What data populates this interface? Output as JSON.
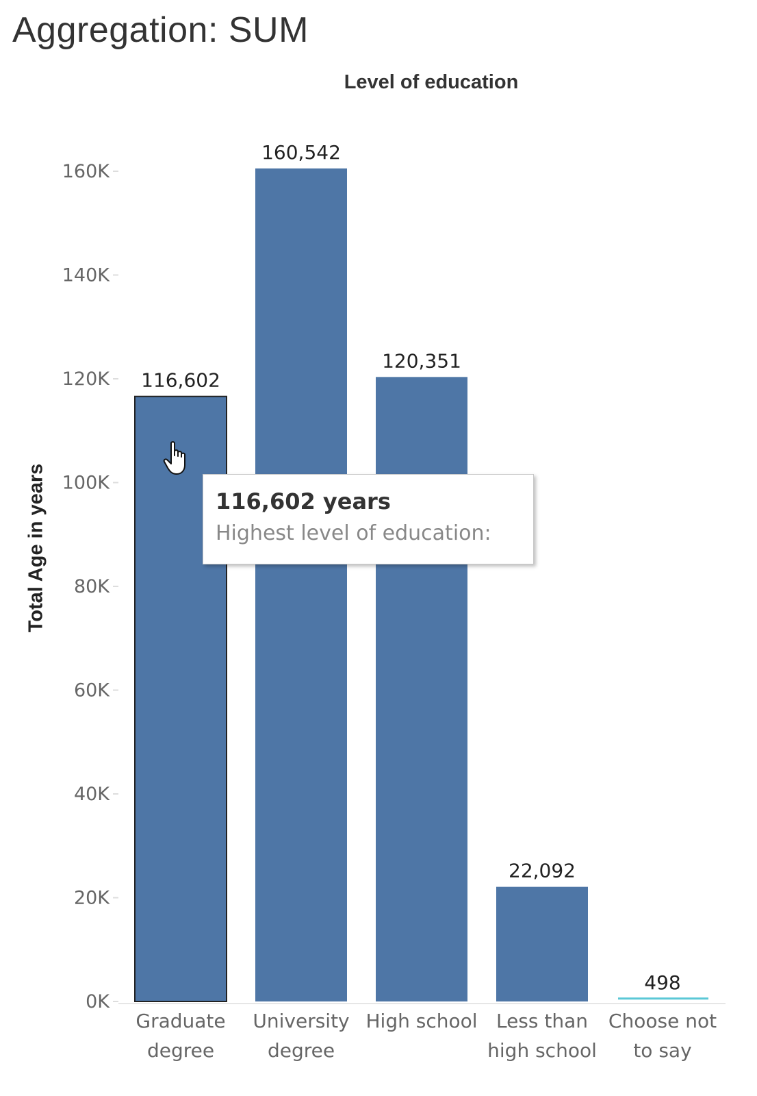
{
  "title": "Aggregation: SUM",
  "column_header": "Level of education",
  "tooltip": {
    "value": "116,602 years",
    "description": "Highest level of education:"
  },
  "colors": {
    "bar": "#4e76a6",
    "bar_selected_border": "#222222",
    "last_bar": "#5bc8d6"
  },
  "cursor_icon": "hand-pointer-icon",
  "chart_data": {
    "type": "bar",
    "title": "",
    "xlabel": "",
    "ylabel": "Total Age in years",
    "categories": [
      [
        "Graduate",
        "degree"
      ],
      [
        "University",
        "degree"
      ],
      [
        "High school"
      ],
      [
        "Less than",
        "high school"
      ],
      [
        "Choose not",
        "to say"
      ]
    ],
    "values": [
      116602,
      160542,
      120351,
      22092,
      498
    ],
    "data_labels": [
      "116,602",
      "160,542",
      "120,351",
      "22,092",
      "498"
    ],
    "yticks": [
      0,
      20000,
      40000,
      60000,
      80000,
      100000,
      120000,
      140000,
      160000
    ],
    "ytick_labels": [
      "0K",
      "20K",
      "40K",
      "60K",
      "80K",
      "100K",
      "120K",
      "140K",
      "160K"
    ],
    "ylim": [
      0,
      165000
    ],
    "selected_index": 0,
    "grid": false
  }
}
